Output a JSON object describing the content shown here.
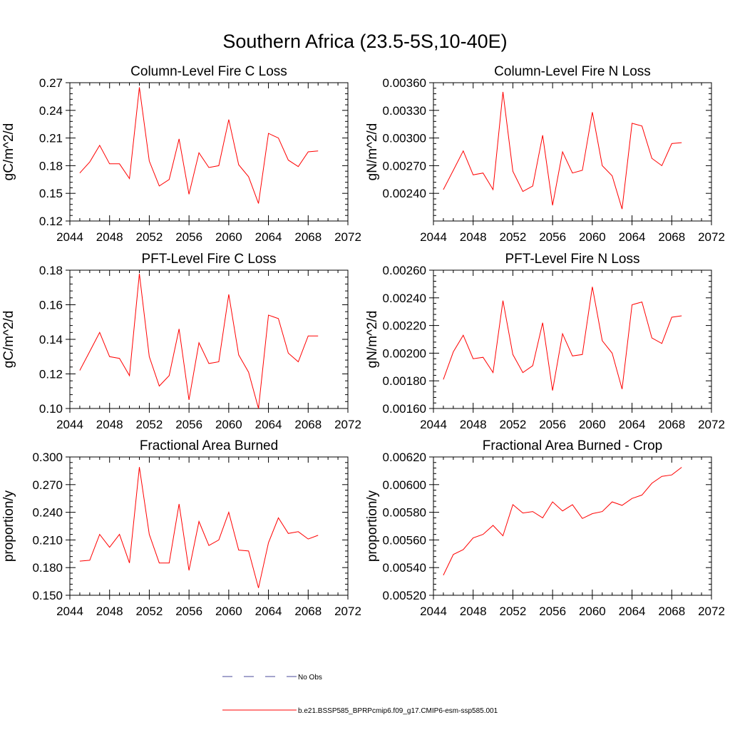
{
  "title": "Southern Africa (23.5-5S,10-40E)",
  "colors": {
    "series": "#ff0000",
    "obs": "#4a4a9a",
    "axis": "#000000",
    "background": "#ffffff"
  },
  "legend": {
    "entries": [
      {
        "label": "No Obs",
        "style": "dashed"
      },
      {
        "label": "b.e21.BSSP585_BPRPcmip6.f09_g17.CMIP6-esm-ssp585.001",
        "style": "solid"
      }
    ]
  },
  "chart_data": [
    {
      "type": "line",
      "title": "Column-Level Fire C Loss",
      "ylabel": "gC/m^2/d",
      "xlim": [
        2044,
        2072
      ],
      "ylim": [
        0.12,
        0.27
      ],
      "xticks": [
        "2044",
        "2048",
        "2052",
        "2056",
        "2060",
        "2064",
        "2068",
        "2072"
      ],
      "yticks": [
        "0.12",
        "0.15",
        "0.18",
        "0.21",
        "0.24",
        "0.27"
      ],
      "x": [
        2045,
        2046,
        2047,
        2048,
        2049,
        2050,
        2051,
        2052,
        2053,
        2054,
        2055,
        2056,
        2057,
        2058,
        2059,
        2060,
        2061,
        2062,
        2063,
        2064,
        2065,
        2066,
        2067,
        2068,
        2069
      ],
      "series": [
        {
          "name": "b.e21.BSSP585_BPRPcmip6.f09_g17.CMIP6-esm-ssp585.001",
          "values": [
            0.172,
            0.184,
            0.202,
            0.182,
            0.182,
            0.166,
            0.265,
            0.185,
            0.158,
            0.165,
            0.209,
            0.149,
            0.194,
            0.178,
            0.18,
            0.23,
            0.181,
            0.168,
            0.139,
            0.215,
            0.21,
            0.186,
            0.179,
            0.195,
            0.196
          ]
        }
      ]
    },
    {
      "type": "line",
      "title": "Column-Level Fire N Loss",
      "ylabel": "gN/m^2/d",
      "xlim": [
        2044,
        2072
      ],
      "ylim": [
        0.0021,
        0.0036
      ],
      "xticks": [
        "2044",
        "2048",
        "2052",
        "2056",
        "2060",
        "2064",
        "2068",
        "2072"
      ],
      "yticks": [
        "0.00240",
        "0.00270",
        "0.00300",
        "0.00330",
        "0.00360"
      ],
      "x": [
        2045,
        2046,
        2047,
        2048,
        2049,
        2050,
        2051,
        2052,
        2053,
        2054,
        2055,
        2056,
        2057,
        2058,
        2059,
        2060,
        2061,
        2062,
        2063,
        2064,
        2065,
        2066,
        2067,
        2068,
        2069
      ],
      "series": [
        {
          "name": "b.e21.BSSP585_BPRPcmip6.f09_g17.CMIP6-esm-ssp585.001",
          "values": [
            0.00244,
            0.00265,
            0.00286,
            0.0026,
            0.00262,
            0.00244,
            0.0035,
            0.00264,
            0.00242,
            0.00248,
            0.00303,
            0.00227,
            0.00285,
            0.00262,
            0.00265,
            0.00328,
            0.0027,
            0.00259,
            0.00223,
            0.00316,
            0.00313,
            0.00278,
            0.0027,
            0.00294,
            0.00295
          ]
        }
      ]
    },
    {
      "type": "line",
      "title": "PFT-Level Fire C Loss",
      "ylabel": "gC/m^2/d",
      "xlim": [
        2044,
        2072
      ],
      "ylim": [
        0.1,
        0.18
      ],
      "xticks": [
        "2044",
        "2048",
        "2052",
        "2056",
        "2060",
        "2064",
        "2068",
        "2072"
      ],
      "yticks": [
        "0.10",
        "0.12",
        "0.14",
        "0.16",
        "0.18"
      ],
      "x": [
        2045,
        2046,
        2047,
        2048,
        2049,
        2050,
        2051,
        2052,
        2053,
        2054,
        2055,
        2056,
        2057,
        2058,
        2059,
        2060,
        2061,
        2062,
        2063,
        2064,
        2065,
        2066,
        2067,
        2068,
        2069
      ],
      "series": [
        {
          "name": "b.e21.BSSP585_BPRPcmip6.f09_g17.CMIP6-esm-ssp585.001",
          "values": [
            0.122,
            0.133,
            0.144,
            0.13,
            0.129,
            0.119,
            0.178,
            0.13,
            0.113,
            0.119,
            0.146,
            0.105,
            0.138,
            0.126,
            0.127,
            0.166,
            0.131,
            0.121,
            0.1,
            0.154,
            0.152,
            0.132,
            0.127,
            0.142,
            0.142
          ]
        }
      ]
    },
    {
      "type": "line",
      "title": "PFT-Level Fire N Loss",
      "ylabel": "gN/m^2/d",
      "xlim": [
        2044,
        2072
      ],
      "ylim": [
        0.0016,
        0.0026
      ],
      "xticks": [
        "2044",
        "2048",
        "2052",
        "2056",
        "2060",
        "2064",
        "2068",
        "2072"
      ],
      "yticks": [
        "0.00160",
        "0.00180",
        "0.00200",
        "0.00220",
        "0.00240",
        "0.00260"
      ],
      "x": [
        2045,
        2046,
        2047,
        2048,
        2049,
        2050,
        2051,
        2052,
        2053,
        2054,
        2055,
        2056,
        2057,
        2058,
        2059,
        2060,
        2061,
        2062,
        2063,
        2064,
        2065,
        2066,
        2067,
        2068,
        2069
      ],
      "series": [
        {
          "name": "b.e21.BSSP585_BPRPcmip6.f09_g17.CMIP6-esm-ssp585.001",
          "values": [
            0.00181,
            0.00201,
            0.00213,
            0.00196,
            0.00197,
            0.00186,
            0.00238,
            0.00199,
            0.00186,
            0.00191,
            0.00222,
            0.00173,
            0.00214,
            0.00198,
            0.00199,
            0.00248,
            0.00209,
            0.002,
            0.00174,
            0.00235,
            0.00237,
            0.00211,
            0.00207,
            0.00226,
            0.00227
          ]
        }
      ]
    },
    {
      "type": "line",
      "title": "Fractional Area Burned",
      "ylabel": "proportion/y",
      "xlim": [
        2044,
        2072
      ],
      "ylim": [
        0.15,
        0.3
      ],
      "xticks": [
        "2044",
        "2048",
        "2052",
        "2056",
        "2060",
        "2064",
        "2068",
        "2072"
      ],
      "yticks": [
        "0.150",
        "0.180",
        "0.210",
        "0.240",
        "0.270",
        "0.300"
      ],
      "x": [
        2045,
        2046,
        2047,
        2048,
        2049,
        2050,
        2051,
        2052,
        2053,
        2054,
        2055,
        2056,
        2057,
        2058,
        2059,
        2060,
        2061,
        2062,
        2063,
        2064,
        2065,
        2066,
        2067,
        2068,
        2069
      ],
      "series": [
        {
          "name": "b.e21.BSSP585_BPRPcmip6.f09_g17.CMIP6-esm-ssp585.001",
          "values": [
            0.187,
            0.188,
            0.216,
            0.202,
            0.216,
            0.185,
            0.289,
            0.216,
            0.185,
            0.185,
            0.249,
            0.177,
            0.23,
            0.204,
            0.21,
            0.24,
            0.199,
            0.198,
            0.158,
            0.207,
            0.234,
            0.217,
            0.219,
            0.211,
            0.215
          ]
        }
      ]
    },
    {
      "type": "line",
      "title": "Fractional Area Burned - Crop",
      "ylabel": "proportion/y",
      "xlim": [
        2044,
        2072
      ],
      "ylim": [
        0.0052,
        0.0062
      ],
      "xticks": [
        "2044",
        "2048",
        "2052",
        "2056",
        "2060",
        "2064",
        "2068",
        "2072"
      ],
      "yticks": [
        "0.00520",
        "0.00540",
        "0.00560",
        "0.00580",
        "0.00600",
        "0.00620"
      ],
      "x": [
        2045,
        2046,
        2047,
        2048,
        2049,
        2050,
        2051,
        2052,
        2053,
        2054,
        2055,
        2056,
        2057,
        2058,
        2059,
        2060,
        2061,
        2062,
        2063,
        2064,
        2065,
        2066,
        2067,
        2068,
        2069
      ],
      "series": [
        {
          "name": "b.e21.BSSP585_BPRPcmip6.f09_g17.CMIP6-esm-ssp585.001",
          "values": [
            0.005345,
            0.005495,
            0.00553,
            0.005615,
            0.00564,
            0.005705,
            0.00563,
            0.005855,
            0.005795,
            0.005805,
            0.00576,
            0.005875,
            0.00581,
            0.005855,
            0.005755,
            0.00579,
            0.005805,
            0.005875,
            0.00585,
            0.0059,
            0.005925,
            0.00601,
            0.00606,
            0.00607,
            0.006125
          ]
        }
      ]
    }
  ]
}
